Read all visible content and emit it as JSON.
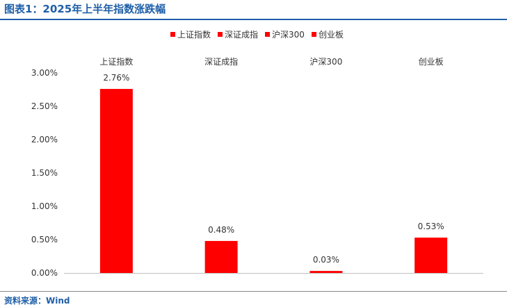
{
  "title": "图表1：2025年上半年指数涨跌幅",
  "source": "资料来源：Wind",
  "colors": {
    "bar": "#ff0000",
    "title": "#1f5fa8"
  },
  "chart_data": {
    "type": "bar",
    "categories": [
      "上证指数",
      "深证成指",
      "沪深300",
      "创业板"
    ],
    "values": [
      2.76,
      0.48,
      0.03,
      0.53
    ],
    "data_labels": [
      "2.76%",
      "0.48%",
      "0.03%",
      "0.53%"
    ],
    "legend": [
      "上证指数",
      "深证成指",
      "沪深300",
      "创业板"
    ],
    "legend_position": "top",
    "category_labels_position": "top",
    "ylim": [
      0,
      3.0
    ],
    "yticks": [
      0,
      0.5,
      1.0,
      1.5,
      2.0,
      2.5,
      3.0
    ],
    "ytick_labels": [
      "0.00%",
      "0.50%",
      "1.00%",
      "1.50%",
      "2.00%",
      "2.50%",
      "3.00%"
    ],
    "grid": false,
    "unit": "%"
  }
}
